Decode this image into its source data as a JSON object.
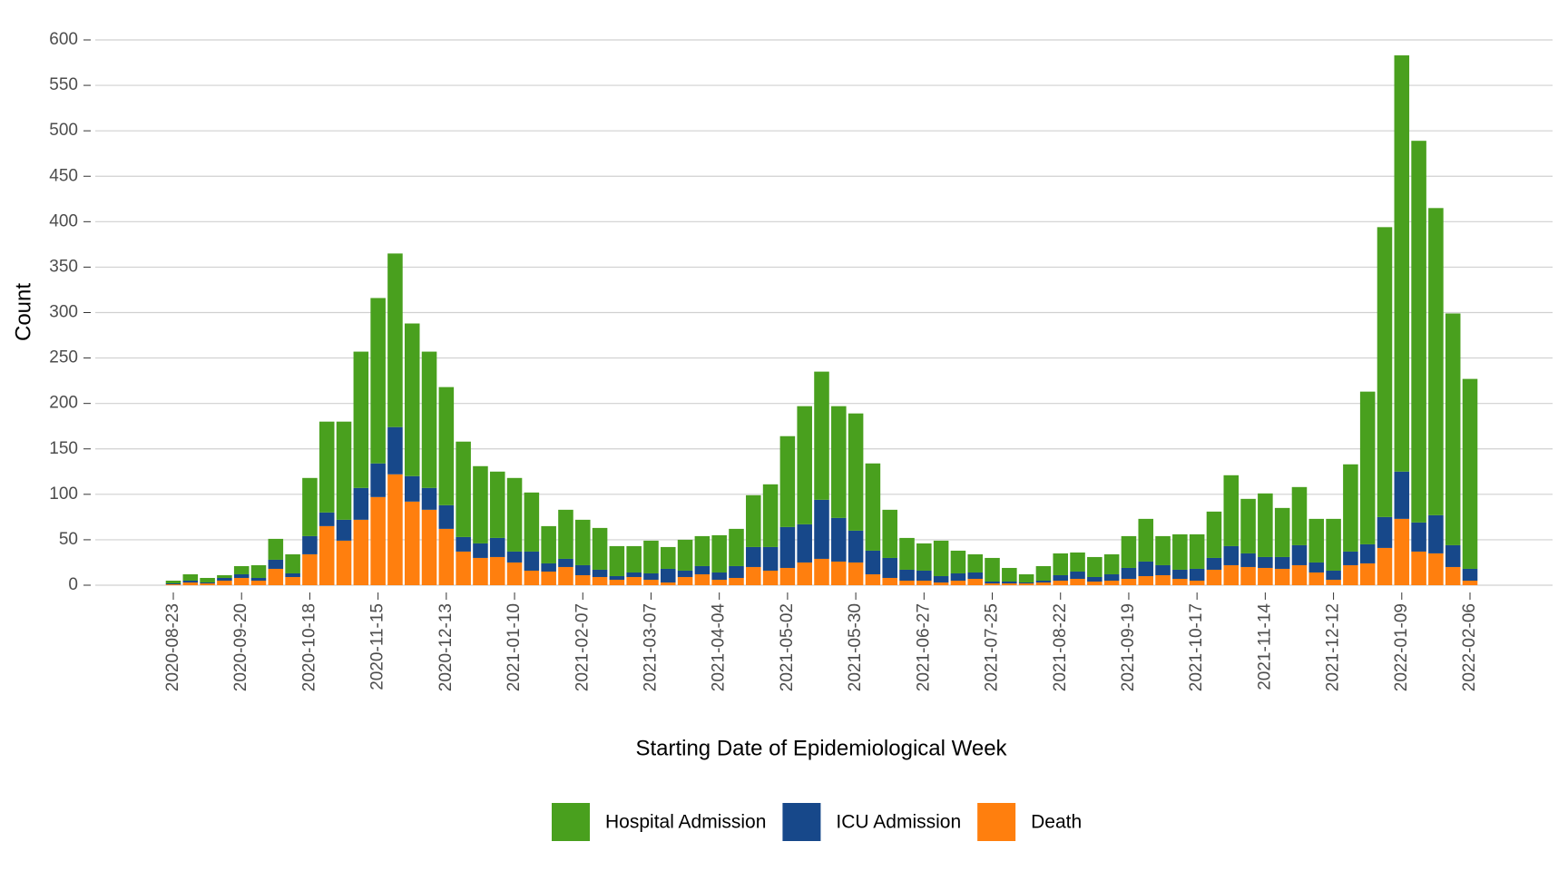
{
  "chart_data": {
    "type": "stacked_bar",
    "x_label": "Starting Date of Epidemiological Week",
    "y_label": "Count",
    "categories": [
      "2020-08-23",
      null,
      null,
      null,
      "2020-09-20",
      null,
      null,
      null,
      "2020-10-18",
      null,
      null,
      null,
      "2020-11-15",
      null,
      null,
      null,
      "2020-12-13",
      null,
      null,
      null,
      "2021-01-10",
      null,
      null,
      null,
      "2021-02-07",
      null,
      null,
      null,
      "2021-03-07",
      null,
      null,
      null,
      "2021-04-04",
      null,
      null,
      null,
      "2021-05-02",
      null,
      null,
      null,
      "2021-05-30",
      null,
      null,
      null,
      "2021-06-27",
      null,
      null,
      null,
      "2021-07-25",
      null,
      null,
      null,
      "2021-08-22",
      null,
      null,
      null,
      "2021-09-19",
      null,
      null,
      null,
      "2021-10-17",
      null,
      null,
      null,
      "2021-11-14",
      null,
      null,
      null,
      "2021-12-12",
      null,
      null,
      null,
      "2022-01-09",
      null,
      null,
      null,
      "2022-02-06"
    ],
    "series": [
      {
        "name": "Hospital Admission",
        "color": "#49a01e",
        "values": [
          3,
          7,
          5,
          3,
          9,
          14,
          23,
          21,
          64,
          100,
          108,
          150,
          182,
          191,
          168,
          150,
          130,
          105,
          85,
          73,
          81,
          65,
          41,
          54,
          50,
          46,
          33,
          29,
          36,
          24,
          34,
          33,
          41,
          41,
          57,
          69,
          100,
          130,
          141,
          123,
          129,
          96,
          53,
          35,
          30,
          39,
          25,
          20,
          26,
          15,
          9,
          16,
          24,
          21,
          22,
          22,
          35,
          47,
          32,
          39,
          38,
          51,
          78,
          60,
          70,
          54,
          64,
          48,
          57,
          96,
          168,
          319,
          458,
          420,
          338,
          255,
          209
        ]
      },
      {
        "name": "ICU Admission",
        "color": "#17488a",
        "values": [
          1,
          2,
          1,
          3,
          4,
          3,
          10,
          4,
          20,
          15,
          23,
          35,
          37,
          52,
          28,
          24,
          26,
          16,
          16,
          21,
          12,
          21,
          9,
          9,
          11,
          8,
          4,
          5,
          7,
          15,
          7,
          9,
          8,
          13,
          22,
          26,
          45,
          42,
          65,
          48,
          35,
          26,
          22,
          12,
          11,
          7,
          8,
          7,
          2,
          2,
          1,
          2,
          6,
          8,
          5,
          7,
          12,
          16,
          11,
          10,
          13,
          13,
          21,
          15,
          12,
          13,
          22,
          11,
          10,
          15,
          21,
          34,
          52,
          32,
          42,
          24,
          13
        ]
      },
      {
        "name": "Death",
        "color": "#ff7f0e",
        "values": [
          1,
          3,
          2,
          5,
          8,
          5,
          18,
          9,
          34,
          65,
          49,
          72,
          97,
          122,
          92,
          83,
          62,
          37,
          30,
          31,
          25,
          16,
          15,
          20,
          11,
          9,
          6,
          9,
          6,
          3,
          9,
          12,
          6,
          8,
          20,
          16,
          19,
          25,
          29,
          26,
          25,
          12,
          8,
          5,
          5,
          3,
          5,
          7,
          2,
          2,
          2,
          3,
          5,
          7,
          4,
          5,
          7,
          10,
          11,
          7,
          5,
          17,
          22,
          20,
          19,
          18,
          22,
          14,
          6,
          22,
          24,
          41,
          73,
          37,
          35,
          20,
          5
        ]
      }
    ],
    "ylim": [
      0,
      600
    ],
    "yticks": [
      0,
      50,
      100,
      150,
      200,
      250,
      300,
      350,
      400,
      450,
      500,
      550,
      600
    ],
    "grid": true,
    "legend": "bottom"
  }
}
